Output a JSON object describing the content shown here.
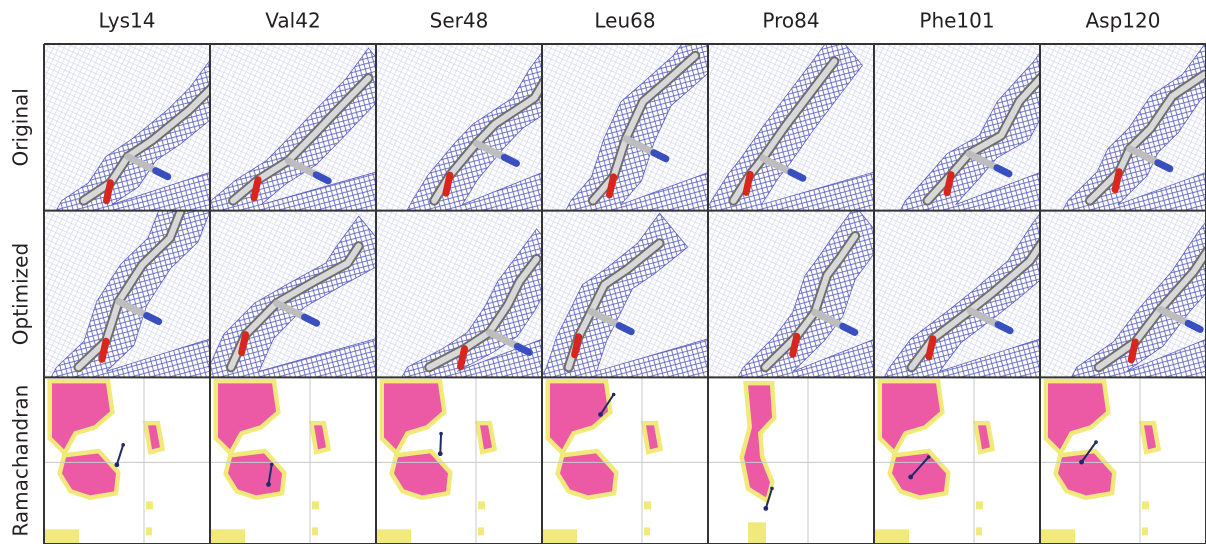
{
  "columns": [
    "Lys14",
    "Val42",
    "Ser48",
    "Leu68",
    "Pro84",
    "Phe101",
    "Asp120"
  ],
  "rows": [
    "Original",
    "Optimized",
    "Ramachandran"
  ]
}
